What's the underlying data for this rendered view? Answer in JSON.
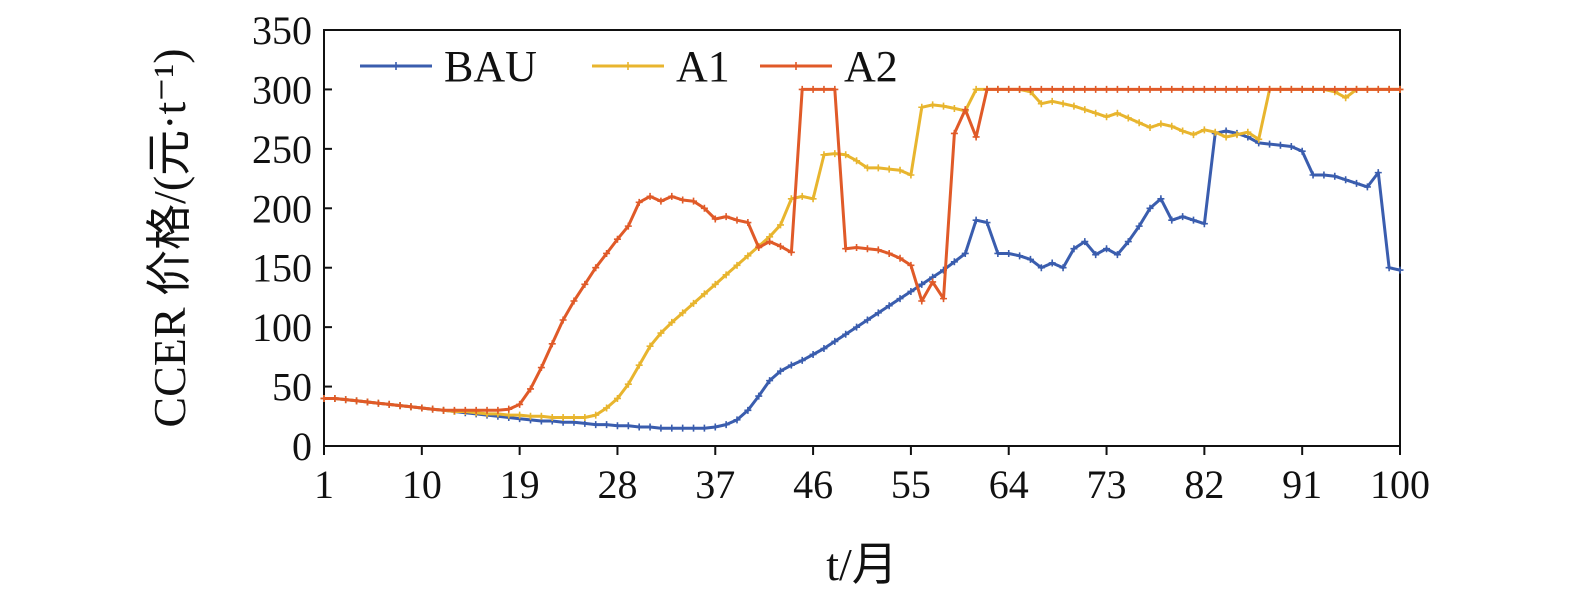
{
  "chart_data": {
    "type": "line",
    "xlabel": "t/月",
    "ylabel": "CCER 价格/(元·t⁻¹)",
    "xlim": [
      1,
      100
    ],
    "ylim": [
      0,
      350
    ],
    "x_ticks": [
      1,
      10,
      19,
      28,
      37,
      46,
      55,
      64,
      73,
      82,
      91,
      100
    ],
    "y_ticks": [
      0,
      50,
      100,
      150,
      200,
      250,
      300,
      350
    ],
    "grid": false,
    "legend_position": "top-left",
    "x": [
      1,
      2,
      3,
      4,
      5,
      6,
      7,
      8,
      9,
      10,
      11,
      12,
      13,
      14,
      15,
      16,
      17,
      18,
      19,
      20,
      21,
      22,
      23,
      24,
      25,
      26,
      27,
      28,
      29,
      30,
      31,
      32,
      33,
      34,
      35,
      36,
      37,
      38,
      39,
      40,
      41,
      42,
      43,
      44,
      45,
      46,
      47,
      48,
      49,
      50,
      51,
      52,
      53,
      54,
      55,
      56,
      57,
      58,
      59,
      60,
      61,
      62,
      63,
      64,
      65,
      66,
      67,
      68,
      69,
      70,
      71,
      72,
      73,
      74,
      75,
      76,
      77,
      78,
      79,
      80,
      81,
      82,
      83,
      84,
      85,
      86,
      87,
      88,
      89,
      90,
      91,
      92,
      93,
      94,
      95,
      96,
      97,
      98,
      99,
      100
    ],
    "series": [
      {
        "name": "BAU",
        "color": "#3A5DAE",
        "values": [
          40,
          40,
          39,
          38,
          37,
          36,
          35,
          34,
          33,
          32,
          31,
          30,
          29,
          28,
          27,
          26,
          25,
          24,
          23,
          22,
          21,
          21,
          20,
          20,
          19,
          18,
          18,
          17,
          17,
          16,
          16,
          15,
          15,
          15,
          15,
          15,
          16,
          18,
          22,
          30,
          42,
          55,
          63,
          68,
          72,
          77,
          82,
          88,
          94,
          100,
          106,
          112,
          118,
          124,
          130,
          136,
          142,
          148,
          155,
          162,
          190,
          188,
          162,
          162,
          160,
          157,
          150,
          154,
          150,
          166,
          172,
          161,
          166,
          161,
          172,
          185,
          200,
          208,
          190,
          193,
          190,
          187,
          263,
          265,
          263,
          260,
          255,
          254,
          253,
          252,
          248,
          228,
          228,
          227,
          224,
          221,
          218,
          230,
          150,
          148
        ]
      },
      {
        "name": "A1",
        "color": "#E8B52E",
        "values": [
          40,
          40,
          39,
          38,
          37,
          36,
          35,
          34,
          33,
          32,
          31,
          30,
          29,
          29,
          28,
          27,
          27,
          26,
          26,
          25,
          25,
          24,
          24,
          24,
          24,
          26,
          32,
          40,
          52,
          68,
          84,
          95,
          104,
          112,
          120,
          128,
          136,
          144,
          152,
          160,
          168,
          176,
          186,
          208,
          210,
          208,
          245,
          246,
          245,
          240,
          234,
          234,
          233,
          232,
          228,
          285,
          287,
          286,
          284,
          282,
          300,
          300,
          300,
          300,
          300,
          298,
          288,
          290,
          288,
          286,
          283,
          280,
          277,
          280,
          276,
          272,
          268,
          271,
          269,
          265,
          262,
          266,
          264,
          260,
          262,
          264,
          258,
          300,
          300,
          300,
          300,
          300,
          300,
          298,
          293,
          300,
          300,
          300,
          300,
          300
        ]
      },
      {
        "name": "A2",
        "color": "#E05A28",
        "values": [
          40,
          40,
          39,
          38,
          37,
          36,
          35,
          34,
          33,
          32,
          31,
          30,
          30,
          30,
          30,
          30,
          30,
          31,
          35,
          48,
          66,
          86,
          106,
          122,
          136,
          150,
          162,
          174,
          185,
          205,
          210,
          206,
          210,
          207,
          206,
          200,
          191,
          193,
          190,
          188,
          167,
          172,
          168,
          163,
          300,
          300,
          300,
          300,
          166,
          167,
          166,
          165,
          162,
          158,
          152,
          122,
          138,
          124,
          263,
          283,
          260,
          300,
          300,
          300,
          300,
          300,
          300,
          300,
          300,
          300,
          300,
          300,
          300,
          300,
          300,
          300,
          300,
          300,
          300,
          300,
          300,
          300,
          300,
          300,
          300,
          300,
          300,
          300,
          300,
          300,
          300,
          300,
          300,
          300,
          300,
          300,
          300,
          300,
          300,
          300
        ]
      }
    ]
  }
}
